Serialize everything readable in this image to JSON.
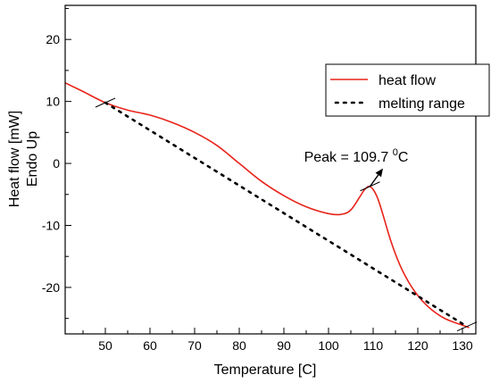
{
  "chart_data": {
    "type": "line",
    "xlabel": "Temperature [C]",
    "ylabel_line1": "Heat flow [mW]",
    "ylabel_line2": "Endo Up",
    "xlim": [
      41,
      133
    ],
    "ylim": [
      -27.5,
      25.5
    ],
    "xticks": [
      50,
      60,
      70,
      80,
      90,
      100,
      110,
      120,
      130
    ],
    "yticks": [
      20,
      10,
      0,
      -10,
      -20
    ],
    "grid": false,
    "legend_position": "top-right",
    "series": [
      {
        "name": "heat flow",
        "color": "#e8231a",
        "style": "solid",
        "x": [
          41,
          45,
          50,
          55,
          60,
          65,
          70,
          75,
          80,
          85,
          90,
          95,
          100,
          103,
          105,
          107,
          108,
          109,
          110,
          111,
          112,
          114,
          116,
          118,
          120,
          122,
          124,
          126,
          128,
          130,
          131.5
        ],
        "y": [
          13,
          11.6,
          9.8,
          8.6,
          7.8,
          6.6,
          5,
          2.9,
          0,
          -2.9,
          -5.2,
          -7,
          -8.1,
          -8.2,
          -7.5,
          -5.4,
          -4.3,
          -3.7,
          -4.2,
          -5.6,
          -7.8,
          -12.6,
          -16.4,
          -19.2,
          -21.3,
          -22.9,
          -24.1,
          -25,
          -25.6,
          -26.1,
          -26.5
        ]
      },
      {
        "name": "melting range",
        "color": "#000000",
        "style": "dotted",
        "x": [
          50,
          131
        ],
        "y": [
          9.8,
          -26.3
        ]
      }
    ],
    "markers": [
      {
        "x": 50,
        "y": 9.8
      },
      {
        "x": 109.3,
        "y": -3.7
      },
      {
        "x": 131,
        "y": -26.3
      }
    ],
    "annotation": {
      "text": "Peak = 109.7 ",
      "sup": "0",
      "unit": "C",
      "arrow_from": [
        109.3,
        -3.7
      ],
      "arrow_to": [
        112.2,
        -0.8
      ],
      "text_anchor": [
        106.2,
        0.3
      ]
    }
  }
}
